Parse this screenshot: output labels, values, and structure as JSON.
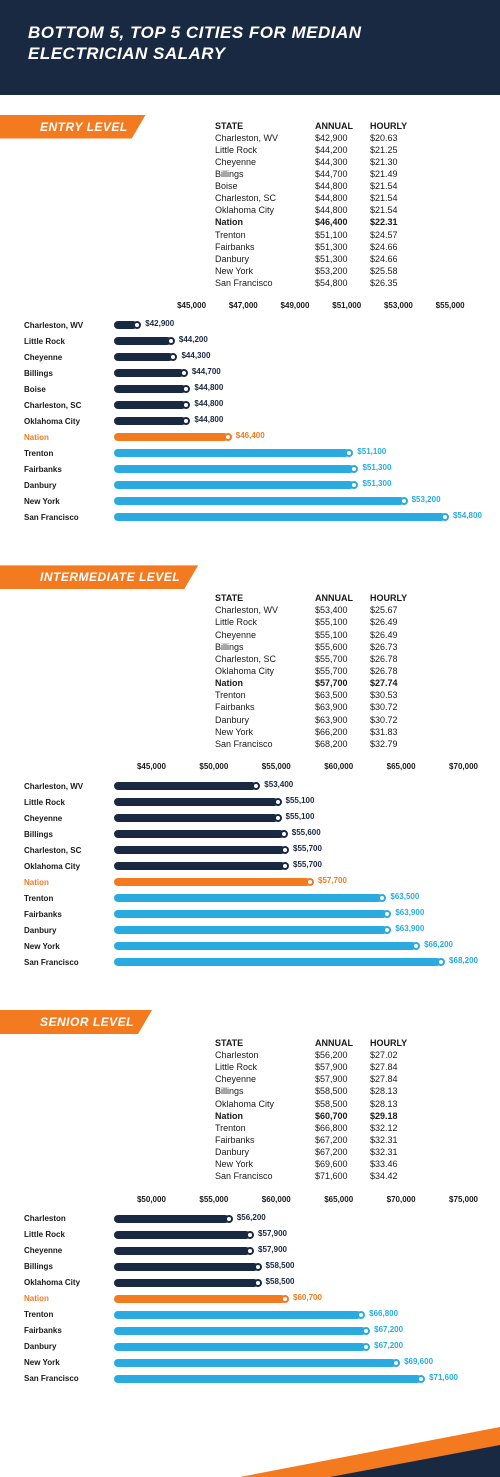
{
  "title": "BOTTOM 5, TOP 5 CITIES FOR MEDIAN ELECTRICIAN SALARY",
  "colors": {
    "header_bg": "#1a2942",
    "accent": "#f47a20",
    "bar_bottom": "#1a2942",
    "bar_nation": "#f47a20",
    "bar_top": "#29abe2",
    "text": "#1a1a1a",
    "white": "#ffffff"
  },
  "columns": {
    "state": "STATE",
    "annual": "ANNUAL",
    "hourly": "HOURLY"
  },
  "levels": [
    {
      "label": "ENTRY LEVEL",
      "axis": {
        "min": 42000,
        "max": 56000,
        "ticks": [
          45000,
          47000,
          49000,
          51000,
          53000,
          55000
        ]
      },
      "rows": [
        {
          "state": "Charleston, WV",
          "annual": 42900,
          "hourly": 20.63,
          "group": "bottom"
        },
        {
          "state": "Little Rock",
          "annual": 44200,
          "hourly": 21.25,
          "group": "bottom"
        },
        {
          "state": "Cheyenne",
          "annual": 44300,
          "hourly": 21.3,
          "group": "bottom"
        },
        {
          "state": "Billings",
          "annual": 44700,
          "hourly": 21.49,
          "group": "bottom"
        },
        {
          "state": "Boise",
          "annual": 44800,
          "hourly": 21.54,
          "group": "bottom"
        },
        {
          "state": "Charleston, SC",
          "annual": 44800,
          "hourly": 21.54,
          "group": "bottom"
        },
        {
          "state": "Oklahoma City",
          "annual": 44800,
          "hourly": 21.54,
          "group": "bottom"
        },
        {
          "state": "Nation",
          "annual": 46400,
          "hourly": 22.31,
          "group": "nation"
        },
        {
          "state": "Trenton",
          "annual": 51100,
          "hourly": 24.57,
          "group": "top"
        },
        {
          "state": "Fairbanks",
          "annual": 51300,
          "hourly": 24.66,
          "group": "top"
        },
        {
          "state": "Danbury",
          "annual": 51300,
          "hourly": 24.66,
          "group": "top"
        },
        {
          "state": "New York",
          "annual": 53200,
          "hourly": 25.58,
          "group": "top"
        },
        {
          "state": "San Francisco",
          "annual": 54800,
          "hourly": 26.35,
          "group": "top"
        }
      ]
    },
    {
      "label": "INTERMEDIATE LEVEL",
      "axis": {
        "min": 42000,
        "max": 71000,
        "ticks": [
          45000,
          50000,
          55000,
          60000,
          65000,
          70000
        ]
      },
      "rows": [
        {
          "state": "Charleston, WV",
          "annual": 53400,
          "hourly": 25.67,
          "group": "bottom"
        },
        {
          "state": "Little Rock",
          "annual": 55100,
          "hourly": 26.49,
          "group": "bottom"
        },
        {
          "state": "Cheyenne",
          "annual": 55100,
          "hourly": 26.49,
          "group": "bottom"
        },
        {
          "state": "Billings",
          "annual": 55600,
          "hourly": 26.73,
          "group": "bottom"
        },
        {
          "state": "Charleston, SC",
          "annual": 55700,
          "hourly": 26.78,
          "group": "bottom"
        },
        {
          "state": "Oklahoma City",
          "annual": 55700,
          "hourly": 26.78,
          "group": "bottom"
        },
        {
          "state": "Nation",
          "annual": 57700,
          "hourly": 27.74,
          "group": "nation"
        },
        {
          "state": "Trenton",
          "annual": 63500,
          "hourly": 30.53,
          "group": "top"
        },
        {
          "state": "Fairbanks",
          "annual": 63900,
          "hourly": 30.72,
          "group": "top"
        },
        {
          "state": "Danbury",
          "annual": 63900,
          "hourly": 30.72,
          "group": "top"
        },
        {
          "state": "New York",
          "annual": 66200,
          "hourly": 31.83,
          "group": "top"
        },
        {
          "state": "San Francisco",
          "annual": 68200,
          "hourly": 32.79,
          "group": "top"
        }
      ]
    },
    {
      "label": "SENIOR LEVEL",
      "axis": {
        "min": 47000,
        "max": 76000,
        "ticks": [
          50000,
          55000,
          60000,
          65000,
          70000,
          75000
        ]
      },
      "rows": [
        {
          "state": "Charleston",
          "annual": 56200,
          "hourly": 27.02,
          "group": "bottom"
        },
        {
          "state": "Little Rock",
          "annual": 57900,
          "hourly": 27.84,
          "group": "bottom"
        },
        {
          "state": "Cheyenne",
          "annual": 57900,
          "hourly": 27.84,
          "group": "bottom"
        },
        {
          "state": "Billings",
          "annual": 58500,
          "hourly": 28.13,
          "group": "bottom"
        },
        {
          "state": "Oklahoma City",
          "annual": 58500,
          "hourly": 28.13,
          "group": "bottom"
        },
        {
          "state": "Nation",
          "annual": 60700,
          "hourly": 29.18,
          "group": "nation"
        },
        {
          "state": "Trenton",
          "annual": 66800,
          "hourly": 32.12,
          "group": "top"
        },
        {
          "state": "Fairbanks",
          "annual": 67200,
          "hourly": 32.31,
          "group": "top"
        },
        {
          "state": "Danbury",
          "annual": 67200,
          "hourly": 32.31,
          "group": "top"
        },
        {
          "state": "New York",
          "annual": 69600,
          "hourly": 33.46,
          "group": "top"
        },
        {
          "state": "San Francisco",
          "annual": 71600,
          "hourly": 34.42,
          "group": "top"
        }
      ]
    }
  ]
}
